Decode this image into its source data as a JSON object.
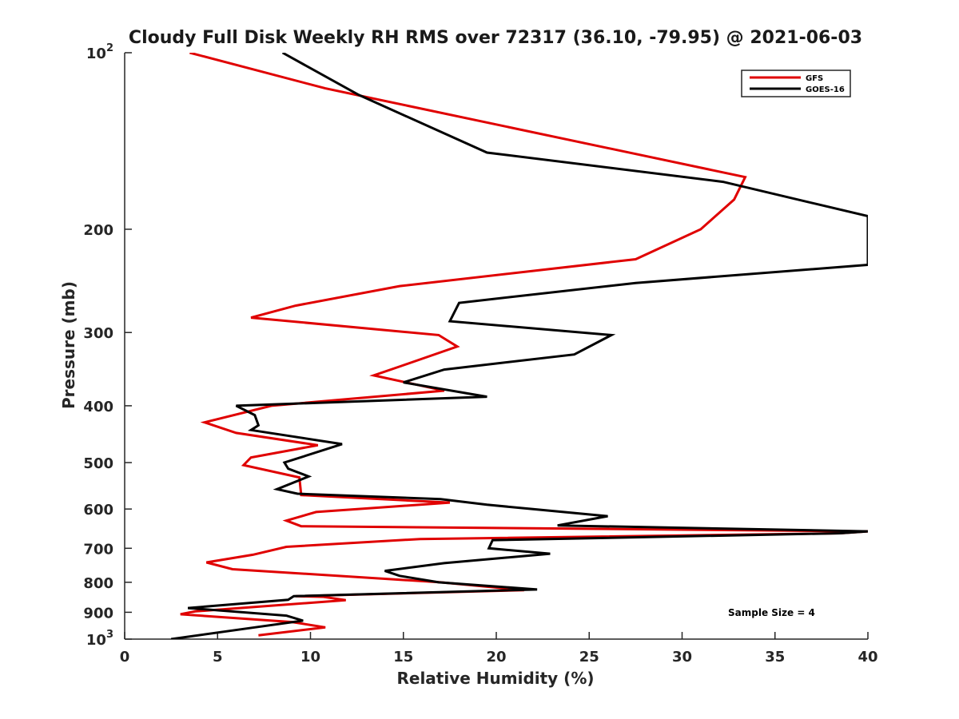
{
  "chart_data": {
    "type": "line",
    "title": "Cloudy Full Disk Weekly RH RMS over 72317 (36.10, -79.95) @ 2021-06-03",
    "xlabel": "Relative Humidity (%)",
    "ylabel": "Pressure (mb)",
    "xlim": [
      0,
      40
    ],
    "ylim": [
      100,
      1000
    ],
    "y_scale": "log",
    "y_reversed": true,
    "x_ticks": [
      "0",
      "5",
      "10",
      "15",
      "20",
      "25",
      "30",
      "35",
      "40"
    ],
    "y_ticks": [
      {
        "value": 100,
        "base": "10",
        "sup": "2"
      },
      {
        "value": 200,
        "base": "200",
        "sup": ""
      },
      {
        "value": 300,
        "base": "300",
        "sup": ""
      },
      {
        "value": 400,
        "base": "400",
        "sup": ""
      },
      {
        "value": 500,
        "base": "500",
        "sup": ""
      },
      {
        "value": 600,
        "base": "600",
        "sup": ""
      },
      {
        "value": 700,
        "base": "700",
        "sup": ""
      },
      {
        "value": 800,
        "base": "800",
        "sup": ""
      },
      {
        "value": 900,
        "base": "900",
        "sup": ""
      },
      {
        "value": 1000,
        "base": "10",
        "sup": "3"
      }
    ],
    "grid": false,
    "legend_position": "top-right",
    "annotation": "Sample Size = 4",
    "series": [
      {
        "name": "GFS",
        "color": "#e00000",
        "points": [
          [
            3.5,
            100
          ],
          [
            10.8,
            115
          ],
          [
            33.4,
            163
          ],
          [
            32.8,
            178
          ],
          [
            31.0,
            200
          ],
          [
            27.5,
            225
          ],
          [
            14.8,
            250
          ],
          [
            9.2,
            270
          ],
          [
            6.8,
            283
          ],
          [
            16.9,
            303
          ],
          [
            17.9,
            317
          ],
          [
            14.9,
            342
          ],
          [
            13.4,
            355
          ],
          [
            17.2,
            377
          ],
          [
            7.9,
            400
          ],
          [
            4.3,
            427
          ],
          [
            6.0,
            445
          ],
          [
            10.4,
            467
          ],
          [
            6.8,
            490
          ],
          [
            6.4,
            505
          ],
          [
            9.4,
            530
          ],
          [
            9.5,
            568
          ],
          [
            17.5,
            585
          ],
          [
            10.3,
            607
          ],
          [
            8.7,
            628
          ],
          [
            9.5,
            642
          ],
          [
            40.0,
            655
          ],
          [
            38.5,
            660
          ],
          [
            15.9,
            675
          ],
          [
            8.7,
            696
          ],
          [
            6.9,
            718
          ],
          [
            4.4,
            740
          ],
          [
            5.8,
            760
          ],
          [
            17.0,
            800
          ],
          [
            21.5,
            825
          ],
          [
            9.2,
            845
          ],
          [
            10.7,
            847
          ],
          [
            11.9,
            858
          ],
          [
            3.8,
            897
          ],
          [
            3.0,
            907
          ],
          [
            9.0,
            935
          ],
          [
            10.8,
            955
          ],
          [
            7.2,
            985
          ]
        ]
      },
      {
        "name": "GOES-16",
        "color": "#000000",
        "points": [
          [
            8.5,
            100
          ],
          [
            12.6,
            118
          ],
          [
            19.5,
            148
          ],
          [
            32.2,
            166
          ],
          [
            40.0,
            190
          ],
          [
            40.0,
            230
          ],
          [
            27.5,
            247
          ],
          [
            18.0,
            267
          ],
          [
            17.5,
            287
          ],
          [
            26.2,
            303
          ],
          [
            24.2,
            327
          ],
          [
            17.2,
            347
          ],
          [
            15.0,
            365
          ],
          [
            19.5,
            386
          ],
          [
            6.0,
            400
          ],
          [
            7.0,
            415
          ],
          [
            7.2,
            432
          ],
          [
            6.8,
            440
          ],
          [
            11.7,
            465
          ],
          [
            8.6,
            500
          ],
          [
            8.8,
            512
          ],
          [
            9.9,
            528
          ],
          [
            8.2,
            555
          ],
          [
            9.3,
            565
          ],
          [
            17.0,
            577
          ],
          [
            19.5,
            590
          ],
          [
            26.0,
            617
          ],
          [
            23.3,
            640
          ],
          [
            40.0,
            655
          ],
          [
            38.5,
            660
          ],
          [
            19.8,
            678
          ],
          [
            19.6,
            700
          ],
          [
            22.9,
            715
          ],
          [
            17.2,
            742
          ],
          [
            14.0,
            765
          ],
          [
            14.8,
            780
          ],
          [
            16.9,
            800
          ],
          [
            22.2,
            823
          ],
          [
            9.1,
            845
          ],
          [
            8.8,
            857
          ],
          [
            3.4,
            885
          ],
          [
            8.7,
            912
          ],
          [
            9.6,
            930
          ],
          [
            7.0,
            955
          ],
          [
            2.5,
            1000
          ]
        ]
      }
    ]
  }
}
